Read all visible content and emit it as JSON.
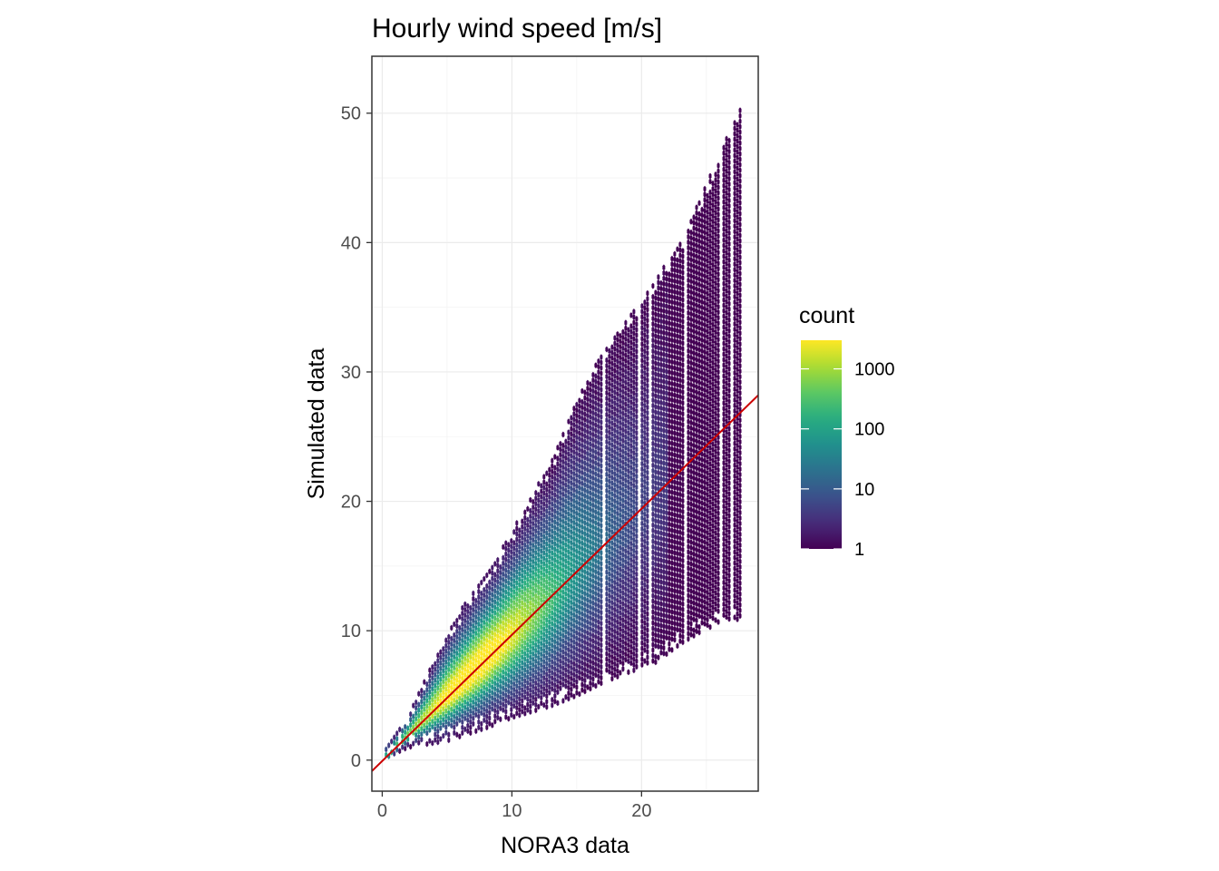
{
  "chart_data": {
    "type": "heatmap",
    "subtype": "hexbin",
    "title": "Hourly wind speed [m/s]",
    "xlabel": "NORA3 data",
    "ylabel": "Simulated data",
    "xlim": [
      -0.8,
      29
    ],
    "ylim": [
      -2.4,
      54.4
    ],
    "x_ticks": [
      0,
      10,
      20
    ],
    "y_ticks": [
      0,
      10,
      20,
      30,
      40,
      50
    ],
    "x_tick_labels": [
      "0",
      "10",
      "20"
    ],
    "y_tick_labels": [
      "0",
      "10",
      "20",
      "30",
      "40",
      "50"
    ],
    "grid": true,
    "colormap": "viridis",
    "color_scale": "log10",
    "legend": {
      "title": "count",
      "position": "right",
      "range": [
        1,
        3000
      ],
      "breaks": [
        1,
        10,
        100,
        1000
      ],
      "labels": [
        "1",
        "10",
        "100",
        "1000"
      ]
    },
    "reference_line": {
      "intercept": -0.07,
      "slope": 0.975,
      "color": "#cc0000"
    },
    "distribution": {
      "x_range": [
        0.3,
        27.8
      ],
      "lower_envelope": [
        [
          0.3,
          0.2
        ],
        [
          2,
          1.0
        ],
        [
          5,
          1.5
        ],
        [
          8,
          2.5
        ],
        [
          10,
          3.3
        ],
        [
          13,
          4.2
        ],
        [
          15,
          5.0
        ],
        [
          17,
          6.0
        ],
        [
          19,
          6.8
        ],
        [
          21,
          7.5
        ],
        [
          23,
          9.0
        ],
        [
          25,
          10.2
        ],
        [
          27.8,
          11.0
        ]
      ],
      "upper_envelope": [
        [
          0.3,
          1.2
        ],
        [
          2,
          3.5
        ],
        [
          5,
          10.0
        ],
        [
          7,
          13.0
        ],
        [
          9,
          16.0
        ],
        [
          11,
          19.5
        ],
        [
          13,
          23.0
        ],
        [
          15,
          28.0
        ],
        [
          17,
          31.5
        ],
        [
          19,
          34.5
        ],
        [
          21,
          37.0
        ],
        [
          23,
          40.0
        ],
        [
          25,
          44.5
        ],
        [
          27.8,
          51.0
        ]
      ],
      "peak_density_x": 7,
      "peak_density_y": 7,
      "peak_count": 3000
    }
  }
}
